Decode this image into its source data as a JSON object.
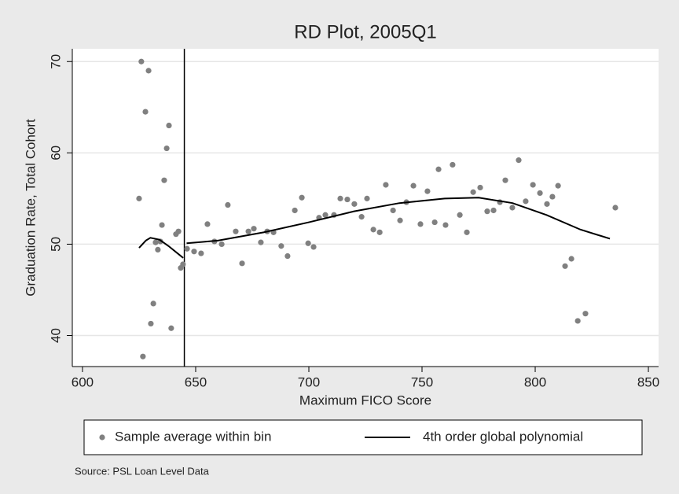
{
  "chart_data": {
    "type": "scatter",
    "title": "RD Plot, 2005Q1",
    "x_label": "Maximum FICO Score",
    "y_label": "Graduation Rate, Total Cohort",
    "note": "Source: PSL Loan Level Data",
    "xlim": [
      595.5,
      854.5
    ],
    "ylim": [
      36.6,
      71.4
    ],
    "xticks": [
      600,
      650,
      700,
      750,
      800,
      850
    ],
    "yticks": [
      40,
      50,
      60,
      70
    ],
    "grid": true,
    "cutoff": 645,
    "series": [
      {
        "name": "Sample average within bin",
        "type": "scatter",
        "color": "#808080",
        "x": [
          625,
          626,
          626.7,
          627.8,
          629.2,
          630.2,
          631.3,
          632.3,
          633.3,
          634.4,
          635.1,
          636.1,
          637.2,
          638.2,
          639.2,
          641.3,
          642.4,
          643.4,
          644.4,
          646.2,
          649.3,
          652.4,
          655.2,
          658.3,
          661.5,
          664.2,
          667.7,
          670.5,
          673.3,
          675.7,
          678.8,
          681.6,
          684.4,
          687.8,
          690.6,
          693.8,
          696.9,
          699.7,
          702.1,
          704.5,
          707.3,
          711.1,
          713.9,
          717,
          720.1,
          723.3,
          725.7,
          728.5,
          731.3,
          734,
          737.2,
          740.3,
          743.1,
          746.2,
          749.3,
          752.4,
          755.6,
          757.3,
          760.4,
          763.5,
          766.7,
          769.8,
          772.6,
          775.7,
          778.8,
          781.6,
          784.4,
          786.8,
          789.9,
          792.7,
          795.8,
          799,
          802.1,
          805.2,
          807.6,
          810.1,
          813.2,
          816,
          818.8,
          822.2,
          835.4
        ],
        "values": [
          55,
          70,
          37.7,
          64.5,
          69,
          41.3,
          43.5,
          50.2,
          49.4,
          50.3,
          52.1,
          57,
          60.5,
          63,
          40.8,
          51.1,
          51.4,
          47.4,
          47.8,
          49.5,
          49.2,
          49,
          52.2,
          50.3,
          50,
          54.3,
          51.4,
          47.9,
          51.4,
          51.7,
          50.2,
          51.4,
          51.3,
          49.8,
          48.7,
          53.7,
          55.1,
          50.1,
          49.7,
          52.9,
          53.2,
          53.2,
          55,
          54.9,
          54.4,
          53,
          55,
          51.6,
          51.3,
          56.5,
          53.7,
          52.6,
          54.6,
          56.4,
          52.2,
          55.8,
          52.4,
          58.2,
          52.1,
          58.7,
          53.2,
          51.3,
          55.7,
          56.2,
          53.6,
          53.7,
          54.6,
          57,
          54,
          59.2,
          54.7,
          56.5,
          55.6,
          54.4,
          55.2,
          56.4,
          47.6,
          48.4,
          41.6,
          42.4,
          54
        ]
      },
      {
        "name": "4th order global polynomial",
        "type": "line",
        "color": "#000000",
        "x": [
          625,
          628,
          630,
          634,
          638,
          642,
          644.5,
          null,
          646,
          660,
          680,
          700,
          720,
          740,
          760,
          775,
          790,
          805,
          820,
          833
        ],
        "values": [
          49.6,
          50.4,
          50.7,
          50.5,
          49.8,
          49,
          48.5,
          null,
          50.1,
          50.4,
          51.3,
          52.4,
          53.6,
          54.5,
          55,
          55.1,
          54.5,
          53.2,
          51.6,
          50.6
        ]
      }
    ]
  }
}
